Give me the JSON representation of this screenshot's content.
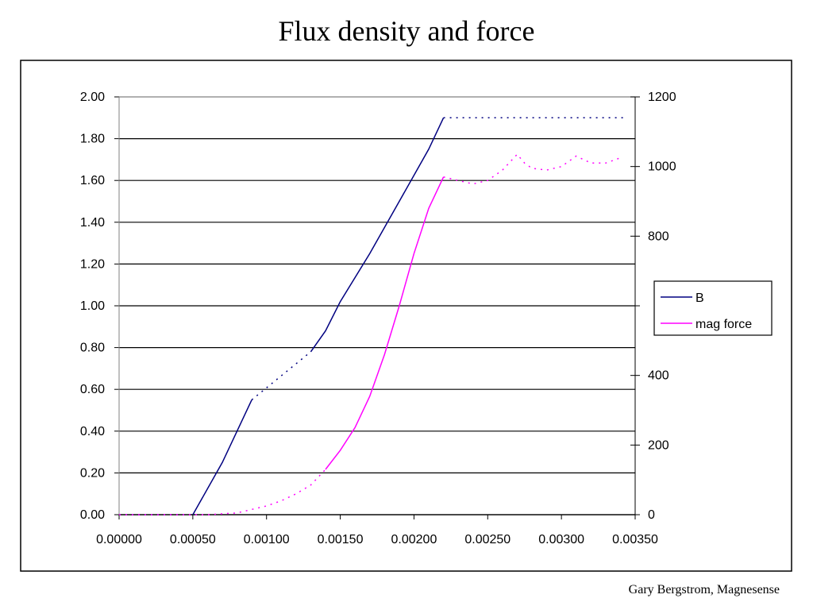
{
  "title": "Flux density and force",
  "footer": "Gary Bergstrom, Magnesense",
  "chart_data": {
    "type": "line",
    "title": "Flux density and force",
    "xlim": [
      0,
      0.0035
    ],
    "ylim": [
      0,
      2.0
    ],
    "y2lim": [
      0,
      1200
    ],
    "x_ticks": [
      "0.00000",
      "0.00050",
      "0.00100",
      "0.00150",
      "0.00200",
      "0.00250",
      "0.00300",
      "0.00350"
    ],
    "y_ticks": [
      "0.00",
      "0.20",
      "0.40",
      "0.60",
      "0.80",
      "1.00",
      "1.20",
      "1.40",
      "1.60",
      "1.80",
      "2.00"
    ],
    "y2_ticks": [
      "0",
      "200",
      "400",
      "",
      "800",
      "1000",
      "1200"
    ],
    "grid": true,
    "legend_position": "right",
    "series": [
      {
        "name": "B",
        "axis": "left",
        "color": "#000080",
        "segments": [
          {
            "style": "dotted",
            "points": [
              [
                0.0,
                0.0
              ],
              [
                0.0005,
                0.0
              ]
            ]
          },
          {
            "style": "solid",
            "points": [
              [
                0.0005,
                0.0
              ],
              [
                0.0007,
                0.25
              ],
              [
                0.0009,
                0.55
              ]
            ]
          },
          {
            "style": "dotted",
            "points": [
              [
                0.0009,
                0.55
              ],
              [
                0.0013,
                0.78
              ]
            ]
          },
          {
            "style": "solid",
            "points": [
              [
                0.0013,
                0.78
              ],
              [
                0.0014,
                0.88
              ],
              [
                0.0015,
                1.02
              ],
              [
                0.0017,
                1.25
              ],
              [
                0.0019,
                1.5
              ],
              [
                0.0021,
                1.75
              ],
              [
                0.0022,
                1.9
              ]
            ]
          },
          {
            "style": "dotted",
            "points": [
              [
                0.0022,
                1.9
              ],
              [
                0.00342,
                1.9
              ]
            ]
          }
        ]
      },
      {
        "name": "mag force",
        "axis": "right",
        "color": "#FF00FF",
        "segments": [
          {
            "style": "dotted",
            "points": [
              [
                0.0,
                0.0
              ],
              [
                0.0006,
                0.0
              ],
              [
                0.0008,
                5
              ],
              [
                0.0009,
                15
              ],
              [
                0.001,
                25
              ],
              [
                0.0011,
                40
              ],
              [
                0.0012,
                60
              ],
              [
                0.0013,
                85
              ],
              [
                0.0014,
                130
              ]
            ]
          },
          {
            "style": "solid",
            "points": [
              [
                0.0014,
                130
              ],
              [
                0.0015,
                185
              ],
              [
                0.0016,
                250
              ],
              [
                0.0017,
                340
              ],
              [
                0.0018,
                460
              ],
              [
                0.0019,
                600
              ],
              [
                0.002,
                750
              ],
              [
                0.0021,
                880
              ],
              [
                0.0022,
                970
              ]
            ]
          },
          {
            "style": "dotted",
            "points": [
              [
                0.0022,
                970
              ],
              [
                0.0023,
                960
              ],
              [
                0.0024,
                950
              ],
              [
                0.0025,
                960
              ],
              [
                0.0026,
                990
              ],
              [
                0.0027,
                1035
              ],
              [
                0.00275,
                1010
              ],
              [
                0.0028,
                995
              ],
              [
                0.0029,
                990
              ],
              [
                0.003,
                1000
              ],
              [
                0.0031,
                1030
              ],
              [
                0.0032,
                1010
              ],
              [
                0.0033,
                1010
              ],
              [
                0.0034,
                1025
              ],
              [
                0.00342,
                1025
              ]
            ]
          }
        ]
      }
    ]
  }
}
